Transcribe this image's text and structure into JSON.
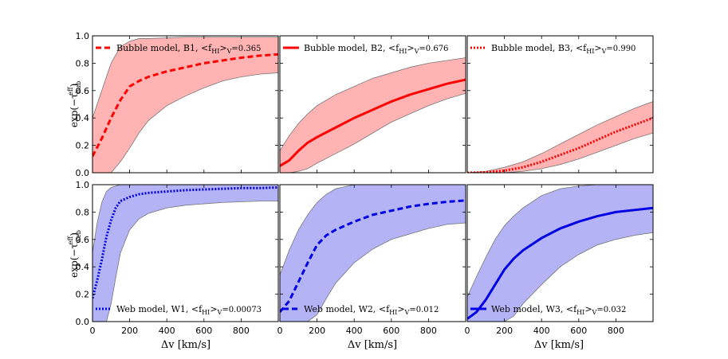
{
  "figure": {
    "xlabel": "Δv [km/s]",
    "xlim": [
      0,
      1000
    ],
    "ylim": [
      0,
      1.0
    ],
    "xticks": [
      "0",
      "200",
      "400",
      "600",
      "800"
    ],
    "yticks": [
      "0.0",
      "0.2",
      "0.4",
      "0.6",
      "0.8",
      "1.0"
    ]
  },
  "rows": [
    {
      "ylabel_base": "exp(−τ",
      "ylabel_sub": "bub",
      "ylabel_sup": "eff",
      "ylabel_close": ")"
    },
    {
      "ylabel_base": "exp(−τ",
      "ylabel_sub": "web",
      "ylabel_sup": "eff",
      "ylabel_close": ")"
    }
  ],
  "colors": {
    "bubble_line": "#ff0000",
    "bubble_fill": "#ffb3b3",
    "web_line": "#0000e6",
    "web_fill": "#b3b3f5",
    "band_edge": "#777777"
  },
  "chart_data": [
    {
      "type": "area",
      "panel": "B1",
      "legend_label": "Bubble model, B1,",
      "legend_frac": "<f",
      "legend_sub": "HI",
      "legend_mid": ">",
      "legend_sub2": "V",
      "legend_value": "=0.365",
      "line_style": "dashed",
      "legend_position": "top-left",
      "x": [
        0,
        50,
        100,
        150,
        200,
        250,
        300,
        400,
        500,
        600,
        700,
        800,
        900,
        1000
      ],
      "median": [
        0.12,
        0.25,
        0.4,
        0.53,
        0.63,
        0.67,
        0.7,
        0.74,
        0.77,
        0.8,
        0.82,
        0.84,
        0.855,
        0.865
      ],
      "upper": [
        0.4,
        0.6,
        0.8,
        0.92,
        0.96,
        0.98,
        0.98,
        0.985,
        0.99,
        0.99,
        0.99,
        0.99,
        0.99,
        0.99
      ],
      "lower": [
        0.0,
        0.0,
        0.0,
        0.08,
        0.18,
        0.29,
        0.38,
        0.49,
        0.56,
        0.62,
        0.67,
        0.7,
        0.72,
        0.73
      ]
    },
    {
      "type": "area",
      "panel": "B2",
      "legend_label": "Bubble model, B2,",
      "legend_frac": "<f",
      "legend_sub": "HI",
      "legend_mid": ">",
      "legend_sub2": "V",
      "legend_value": "=0.676",
      "line_style": "solid",
      "legend_position": "top-left",
      "x": [
        0,
        50,
        100,
        150,
        200,
        300,
        400,
        500,
        600,
        700,
        800,
        900,
        1000
      ],
      "median": [
        0.05,
        0.09,
        0.16,
        0.22,
        0.26,
        0.33,
        0.4,
        0.46,
        0.52,
        0.57,
        0.61,
        0.65,
        0.68
      ],
      "upper": [
        0.16,
        0.27,
        0.36,
        0.43,
        0.49,
        0.57,
        0.63,
        0.69,
        0.73,
        0.77,
        0.8,
        0.82,
        0.84
      ],
      "lower": [
        0.0,
        0.0,
        0.01,
        0.03,
        0.07,
        0.14,
        0.21,
        0.29,
        0.37,
        0.43,
        0.49,
        0.54,
        0.58
      ]
    },
    {
      "type": "area",
      "panel": "B3",
      "legend_label": "Bubble model, B3,",
      "legend_frac": "<f",
      "legend_sub": "HI",
      "legend_mid": ">",
      "legend_sub2": "V",
      "legend_value": "=0.990",
      "line_style": "dotted",
      "legend_position": "top-left",
      "x": [
        0,
        100,
        200,
        300,
        400,
        500,
        600,
        700,
        800,
        900,
        1000
      ],
      "median": [
        0.0,
        0.003,
        0.015,
        0.04,
        0.08,
        0.13,
        0.18,
        0.24,
        0.3,
        0.35,
        0.4
      ],
      "upper": [
        0.0,
        0.01,
        0.04,
        0.08,
        0.14,
        0.21,
        0.28,
        0.35,
        0.41,
        0.47,
        0.52
      ],
      "lower": [
        0.0,
        0.0,
        0.0,
        0.01,
        0.03,
        0.06,
        0.1,
        0.15,
        0.2,
        0.25,
        0.29
      ]
    },
    {
      "type": "area",
      "panel": "W1",
      "legend_label": "Web model, W1,",
      "legend_frac": "<f",
      "legend_sub": "HI",
      "legend_mid": ">",
      "legend_sub2": "V",
      "legend_value": "=0.00073",
      "line_style": "dotted",
      "legend_position": "bottom-left",
      "x": [
        0,
        25,
        50,
        75,
        100,
        125,
        150,
        200,
        250,
        300,
        400,
        500,
        600,
        700,
        800,
        900,
        1000
      ],
      "median": [
        0.17,
        0.3,
        0.45,
        0.62,
        0.74,
        0.83,
        0.88,
        0.91,
        0.93,
        0.94,
        0.95,
        0.96,
        0.965,
        0.97,
        0.975,
        0.975,
        0.98
      ],
      "upper": [
        0.5,
        0.72,
        0.87,
        0.95,
        0.98,
        0.99,
        1.0,
        1.0,
        1.0,
        1.0,
        1.0,
        1.0,
        1.0,
        1.0,
        1.0,
        1.0,
        1.0
      ],
      "lower": [
        0.0,
        0.0,
        0.0,
        0.0,
        0.13,
        0.32,
        0.5,
        0.67,
        0.75,
        0.79,
        0.83,
        0.85,
        0.86,
        0.87,
        0.875,
        0.88,
        0.88
      ]
    },
    {
      "type": "area",
      "panel": "W2",
      "legend_label": "Web model, W2,",
      "legend_frac": "<f",
      "legend_sub": "HI",
      "legend_mid": ">",
      "legend_sub2": "V",
      "legend_value": "=0.012",
      "line_style": "dashed",
      "legend_position": "bottom-left",
      "x": [
        0,
        50,
        100,
        150,
        200,
        250,
        300,
        400,
        500,
        600,
        700,
        800,
        900,
        1000
      ],
      "median": [
        0.07,
        0.15,
        0.29,
        0.43,
        0.56,
        0.63,
        0.67,
        0.73,
        0.78,
        0.81,
        0.84,
        0.86,
        0.875,
        0.885
      ],
      "upper": [
        0.34,
        0.52,
        0.67,
        0.78,
        0.87,
        0.93,
        0.97,
        1.0,
        1.0,
        1.0,
        1.0,
        1.0,
        1.0,
        1.0
      ],
      "lower": [
        0.0,
        0.0,
        0.0,
        0.0,
        0.05,
        0.17,
        0.28,
        0.43,
        0.53,
        0.6,
        0.64,
        0.68,
        0.71,
        0.72
      ]
    },
    {
      "type": "area",
      "panel": "W3",
      "legend_label": "Web model, W3,",
      "legend_frac": "<f",
      "legend_sub": "HI",
      "legend_mid": ">",
      "legend_sub2": "V",
      "legend_value": "=0.032",
      "line_style": "solid",
      "legend_position": "bottom-left",
      "x": [
        0,
        50,
        100,
        150,
        200,
        250,
        300,
        400,
        500,
        600,
        700,
        800,
        900,
        1000
      ],
      "median": [
        0.02,
        0.07,
        0.16,
        0.27,
        0.38,
        0.46,
        0.52,
        0.61,
        0.68,
        0.73,
        0.77,
        0.8,
        0.815,
        0.83
      ],
      "upper": [
        0.18,
        0.33,
        0.47,
        0.6,
        0.7,
        0.77,
        0.83,
        0.92,
        0.97,
        0.99,
        1.0,
        1.0,
        1.0,
        1.0
      ],
      "lower": [
        0.0,
        0.0,
        0.0,
        0.0,
        0.0,
        0.04,
        0.13,
        0.27,
        0.4,
        0.49,
        0.56,
        0.6,
        0.63,
        0.65
      ]
    }
  ]
}
